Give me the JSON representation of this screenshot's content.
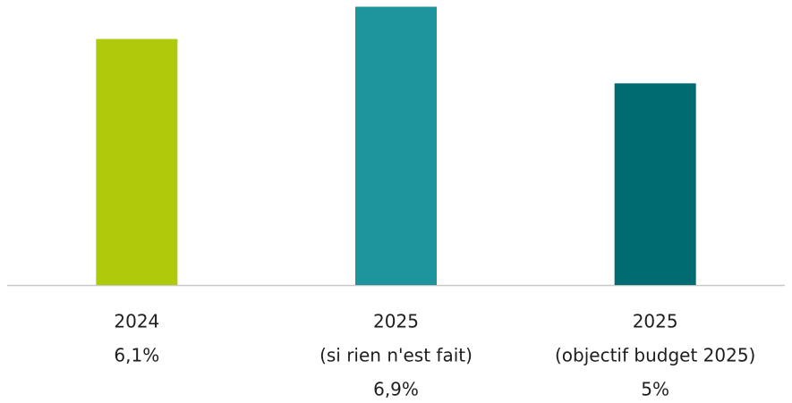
{
  "chart_data": {
    "type": "bar",
    "categories": [
      [
        "2024"
      ],
      [
        "2025",
        "(si rien n'est fait)"
      ],
      [
        "2025",
        "(objectif budget 2025)"
      ]
    ],
    "values": [
      6.1,
      6.9,
      5
    ],
    "value_labels": [
      "6,1%",
      "6,9%",
      "5%"
    ],
    "colors": [
      "#afca0b",
      "#1e959c",
      "#006b70"
    ],
    "ylim": [
      0,
      7
    ]
  }
}
